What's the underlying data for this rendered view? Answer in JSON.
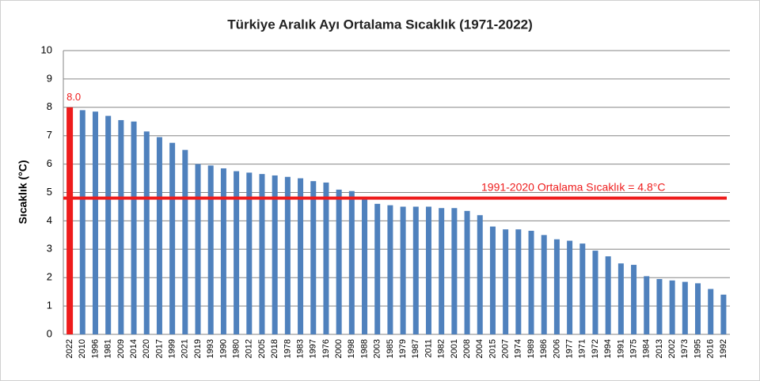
{
  "chart_data": {
    "type": "bar",
    "title": "Türkiye Aralık Ayı Ortalama Sıcaklık (1971-2022)",
    "y_label": "Sıcaklık (°C)",
    "categories": [
      "2022",
      "2010",
      "1996",
      "1981",
      "2009",
      "2014",
      "2020",
      "2017",
      "1999",
      "2021",
      "2019",
      "1993",
      "1990",
      "1980",
      "2012",
      "2005",
      "2018",
      "1978",
      "1983",
      "1997",
      "1976",
      "2000",
      "1998",
      "1988",
      "2003",
      "1985",
      "1979",
      "1987",
      "2011",
      "1982",
      "2001",
      "2008",
      "2004",
      "2015",
      "2007",
      "1974",
      "1989",
      "1986",
      "2006",
      "1977",
      "1971",
      "1972",
      "1994",
      "1991",
      "1975",
      "1984",
      "2013",
      "2002",
      "1973",
      "1995",
      "2016",
      "1992"
    ],
    "values": [
      8.0,
      7.9,
      7.85,
      7.7,
      7.55,
      7.5,
      7.15,
      6.95,
      6.75,
      6.5,
      6.0,
      5.95,
      5.85,
      5.75,
      5.7,
      5.65,
      5.6,
      5.55,
      5.5,
      5.4,
      5.35,
      5.1,
      5.05,
      4.8,
      4.6,
      4.55,
      4.5,
      4.5,
      4.5,
      4.45,
      4.45,
      4.35,
      4.2,
      3.8,
      3.7,
      3.7,
      3.65,
      3.5,
      3.35,
      3.3,
      3.2,
      2.95,
      2.75,
      2.5,
      2.45,
      2.05,
      1.95,
      1.9,
      1.85,
      1.8,
      1.6,
      1.4
    ],
    "value_labels": [
      "8.0",
      null,
      null,
      null,
      null,
      null,
      null,
      null,
      null,
      null,
      null,
      null,
      null,
      null,
      null,
      null,
      null,
      null,
      null,
      null,
      null,
      null,
      null,
      null,
      null,
      null,
      null,
      null,
      null,
      null,
      null,
      null,
      null,
      null,
      null,
      null,
      null,
      null,
      null,
      null,
      null,
      null,
      null,
      null,
      null,
      null,
      null,
      null,
      null,
      null,
      null,
      null
    ],
    "color": "#4f81bd",
    "highlight": {
      "index": 0,
      "color": "#ee1c1c"
    },
    "reference_line": {
      "value": 4.8,
      "label": "1991-2020  Ortalama Sıcaklık = 4.8°C",
      "color": "#ee1c1c"
    },
    "ylim": [
      0,
      10
    ],
    "yticks": [
      0,
      1,
      2,
      3,
      4,
      5,
      6,
      7,
      8,
      9,
      10
    ],
    "grid": true
  }
}
